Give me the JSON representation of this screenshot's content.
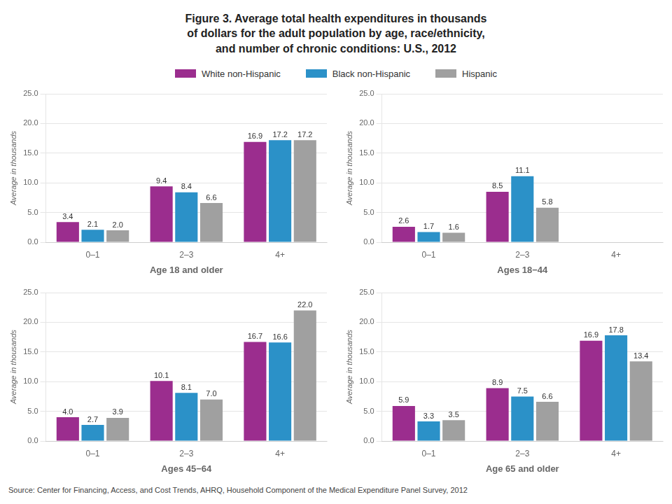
{
  "title": [
    "Figure 3. Average total health expenditures in thousands",
    "of dollars for the adult population by age, race/ethnicity,",
    "and number of chronic conditions: U.S., 2012"
  ],
  "annotations": [
    "Source: Center for Financing, Access, and Cost Trends, AHRQ, Household Component of the Medical Expenditure Panel Survey,  2012"
  ],
  "legend": "top",
  "chart_data": [
    {
      "type": "bar",
      "xlabel": "Age 18 and older",
      "ylabel": "Average in thousands",
      "categories": [
        "0–1",
        "2–3",
        "4+"
      ],
      "series": [
        {
          "name": "White non-Hispanic",
          "color": "#9B2D8E",
          "values": [
            3.4,
            9.4,
            16.9
          ],
          "value_labels": [
            "3.4",
            "9.4",
            "16.9"
          ]
        },
        {
          "name": "Black non-Hispanic",
          "color": "#2B91C8",
          "values": [
            2.1,
            8.4,
            17.2
          ],
          "value_labels": [
            "2.1",
            "8.4",
            "17.2"
          ]
        },
        {
          "name": "Hispanic",
          "color": "#A0A0A0",
          "values": [
            2.0,
            6.6,
            17.2
          ],
          "value_labels": [
            "2.0",
            "6.6",
            "17.2"
          ]
        }
      ],
      "ylim": [
        0,
        25.0
      ],
      "yticks": [
        {
          "value": 0,
          "label": "0.0"
        },
        {
          "value": 5,
          "label": "5.0"
        },
        {
          "value": 10,
          "label": "10.0"
        },
        {
          "value": 15,
          "label": "15.0"
        },
        {
          "value": 20,
          "label": "20.0"
        },
        {
          "value": 25,
          "label": "25.0"
        }
      ],
      "grid": true,
      "data_labels": true
    },
    {
      "type": "bar",
      "xlabel": "Ages 18−44",
      "ylabel": "Average in thousands",
      "categories": [
        "0–1",
        "2–3",
        "4+"
      ],
      "series": [
        {
          "name": "White non-Hispanic",
          "color": "#9B2D8E",
          "values": [
            2.6,
            8.5,
            null
          ],
          "value_labels": [
            "2.6",
            "8.5",
            null
          ]
        },
        {
          "name": "Black non-Hispanic",
          "color": "#2B91C8",
          "values": [
            1.7,
            11.1,
            null
          ],
          "value_labels": [
            "1.7",
            "11.1",
            null
          ]
        },
        {
          "name": "Hispanic",
          "color": "#A0A0A0",
          "values": [
            1.6,
            5.8,
            null
          ],
          "value_labels": [
            "1.6",
            "5.8",
            null
          ]
        }
      ],
      "ylim": [
        0,
        25.0
      ],
      "yticks": [
        {
          "value": 0,
          "label": "0.0"
        },
        {
          "value": 5,
          "label": "5.0"
        },
        {
          "value": 10,
          "label": "10.0"
        },
        {
          "value": 15,
          "label": "15.0"
        },
        {
          "value": 20,
          "label": "20.0"
        },
        {
          "value": 25,
          "label": "25.0"
        }
      ],
      "grid": true,
      "data_labels": true
    },
    {
      "type": "bar",
      "xlabel": "Ages 45−64",
      "ylabel": "Average in thousands",
      "categories": [
        "0–1",
        "2–3",
        "4+"
      ],
      "series": [
        {
          "name": "White non-Hispanic",
          "color": "#9B2D8E",
          "values": [
            4.0,
            10.1,
            16.7
          ],
          "value_labels": [
            "4.0",
            "10.1",
            "16.7"
          ]
        },
        {
          "name": "Black non-Hispanic",
          "color": "#2B91C8",
          "values": [
            2.7,
            8.1,
            16.6
          ],
          "value_labels": [
            "2.7",
            "8.1",
            "16.6"
          ]
        },
        {
          "name": "Hispanic",
          "color": "#A0A0A0",
          "values": [
            3.9,
            7.0,
            22.0
          ],
          "value_labels": [
            "3.9",
            "7.0",
            "22.0"
          ]
        }
      ],
      "ylim": [
        0,
        25.0
      ],
      "yticks": [
        {
          "value": 0,
          "label": "0.0"
        },
        {
          "value": 5,
          "label": "5.0"
        },
        {
          "value": 10,
          "label": "10.0"
        },
        {
          "value": 15,
          "label": "15.0"
        },
        {
          "value": 20,
          "label": "20.0"
        },
        {
          "value": 25,
          "label": "25.0"
        }
      ],
      "grid": true,
      "data_labels": true
    },
    {
      "type": "bar",
      "xlabel": "Age 65 and older",
      "ylabel": "Average in thousands",
      "categories": [
        "0–1",
        "2–3",
        "4+"
      ],
      "series": [
        {
          "name": "White non-Hispanic",
          "color": "#9B2D8E",
          "values": [
            5.9,
            8.9,
            16.9
          ],
          "value_labels": [
            "5.9",
            "8.9",
            "16.9"
          ]
        },
        {
          "name": "Black non-Hispanic",
          "color": "#2B91C8",
          "values": [
            3.3,
            7.5,
            17.8
          ],
          "value_labels": [
            "3.3",
            "7.5",
            "17.8"
          ]
        },
        {
          "name": "Hispanic",
          "color": "#A0A0A0",
          "values": [
            3.5,
            6.6,
            13.4
          ],
          "value_labels": [
            "3.5",
            "6.6",
            "13.4"
          ]
        }
      ],
      "ylim": [
        0,
        25.0
      ],
      "yticks": [
        {
          "value": 0,
          "label": "0.0"
        },
        {
          "value": 5,
          "label": "5.0"
        },
        {
          "value": 10,
          "label": "10.0"
        },
        {
          "value": 15,
          "label": "15.0"
        },
        {
          "value": 20,
          "label": "20.0"
        },
        {
          "value": 25,
          "label": "25.0"
        }
      ],
      "grid": true,
      "data_labels": true
    }
  ]
}
